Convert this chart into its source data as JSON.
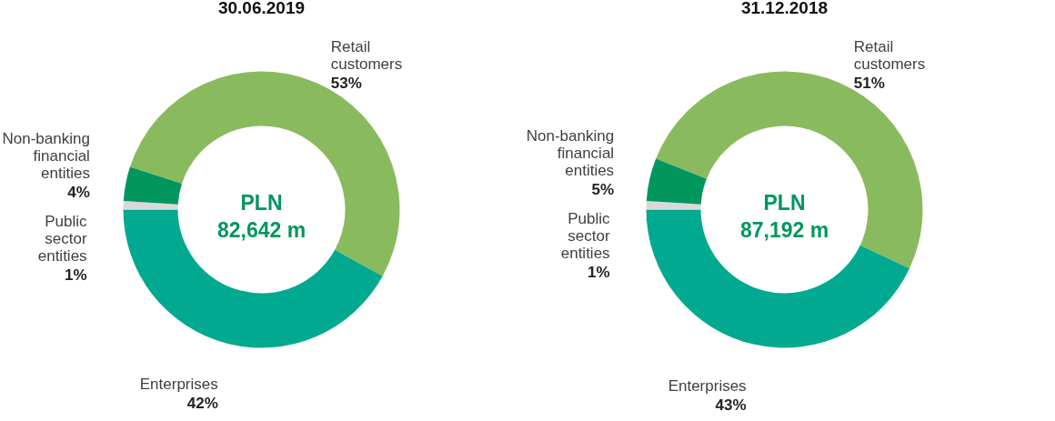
{
  "chart_data": [
    {
      "type": "donut",
      "title": "30.06.2019",
      "categories": [
        "Retail customers",
        "Enterprises",
        "Public sector entities",
        "Non-banking financial entities"
      ],
      "values": [
        53,
        42,
        1,
        4
      ],
      "value_labels": [
        "53%",
        "42%",
        "1%",
        "4%"
      ],
      "colors": [
        "#8aba5e",
        "#00a98f",
        "#d9d9d9",
        "#00965e"
      ],
      "annotations": [
        "PLN",
        "82,642 m"
      ]
    },
    {
      "type": "donut",
      "title": "31.12.2018",
      "categories": [
        "Retail customers",
        "Enterprises",
        "Public sector entities",
        "Non-banking financial entities"
      ],
      "values": [
        51,
        43,
        1,
        5
      ],
      "value_labels": [
        "51%",
        "43%",
        "1%",
        "5%"
      ],
      "colors": [
        "#8aba5e",
        "#00a98f",
        "#d9d9d9",
        "#00965e"
      ],
      "annotations": [
        "PLN",
        "87,192 m"
      ]
    }
  ]
}
